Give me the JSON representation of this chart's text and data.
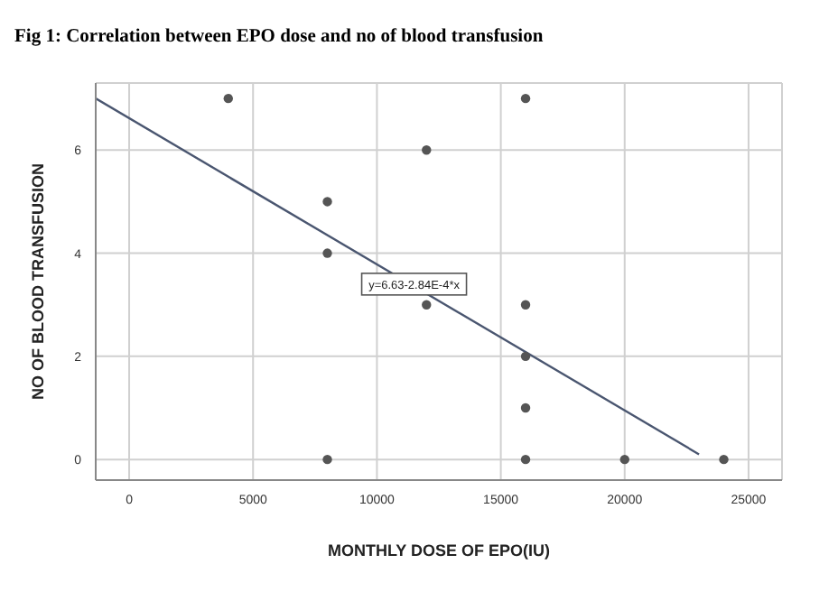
{
  "chart_data": {
    "type": "scatter",
    "title": "Fig 1: Correlation between EPO dose and no of blood transfusion",
    "xlabel": "MONTHLY DOSE OF EPO(IU)",
    "ylabel": "NO OF BLOOD TRANSFUSION",
    "series": [
      {
        "color": "#555555",
        "marker": "circle",
        "x": [
          4000,
          8000,
          8000,
          8000,
          12000,
          12000,
          16000,
          16000,
          16000,
          16000,
          16000,
          20000,
          24000
        ],
        "values": [
          7,
          5,
          4,
          0,
          6,
          3,
          7,
          3,
          2,
          1,
          0,
          0,
          0
        ]
      },
      {
        "type": "line",
        "color": "#4a5670",
        "x": [
          -1350,
          23000
        ],
        "values": [
          7.0,
          0.1
        ]
      }
    ],
    "annotations": [
      {
        "text": "y=6.63-2.84E-4*x",
        "x": 11500,
        "y": 3.4
      }
    ],
    "xlim": [
      -1350,
      26350
    ],
    "xticks": [
      0,
      5000,
      10000,
      15000,
      20000,
      25000
    ],
    "ylim": [
      -0.4,
      7.3
    ],
    "yticks": [
      0,
      2,
      4,
      6
    ],
    "grid": true,
    "line_style": "solid"
  }
}
